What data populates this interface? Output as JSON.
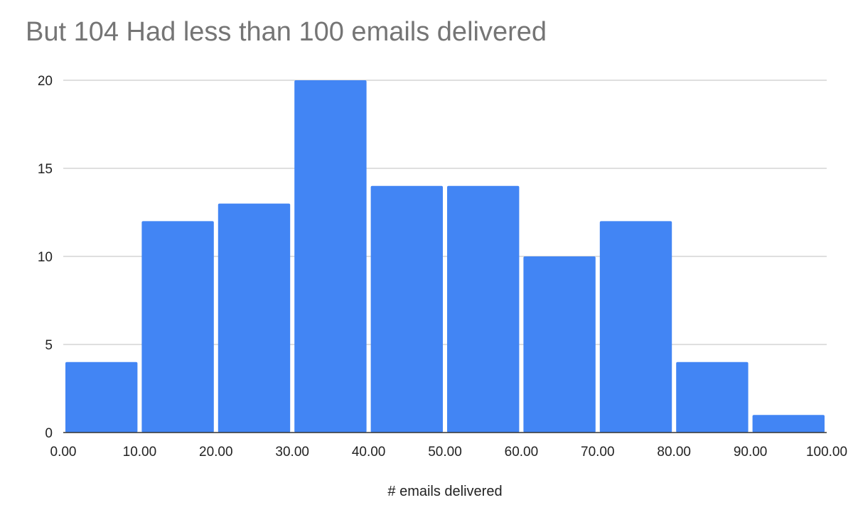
{
  "chart_data": {
    "type": "bar",
    "subtype": "histogram",
    "title": "But 104 Had less than 100 emails delivered",
    "xlabel": "# emails delivered",
    "ylabel": "",
    "bin_edges": [
      0,
      10,
      20,
      30,
      40,
      50,
      60,
      70,
      80,
      90,
      100
    ],
    "x_tick_labels": [
      "0.00",
      "10.00",
      "20.00",
      "30.00",
      "40.00",
      "50.00",
      "60.00",
      "70.00",
      "80.00",
      "90.00",
      "100.00"
    ],
    "values": [
      4,
      12,
      13,
      20,
      14,
      14,
      10,
      12,
      4,
      1
    ],
    "y_ticks": [
      0,
      5,
      10,
      15,
      20
    ],
    "y_tick_labels": [
      "0",
      "5",
      "10",
      "15",
      "20"
    ],
    "ylim": [
      0,
      20
    ],
    "xlim": [
      0,
      100
    ],
    "grid": true,
    "legend": "none",
    "bar_color": "#4285f4",
    "grid_color": "#cccccc",
    "baseline_color": "#333333"
  }
}
